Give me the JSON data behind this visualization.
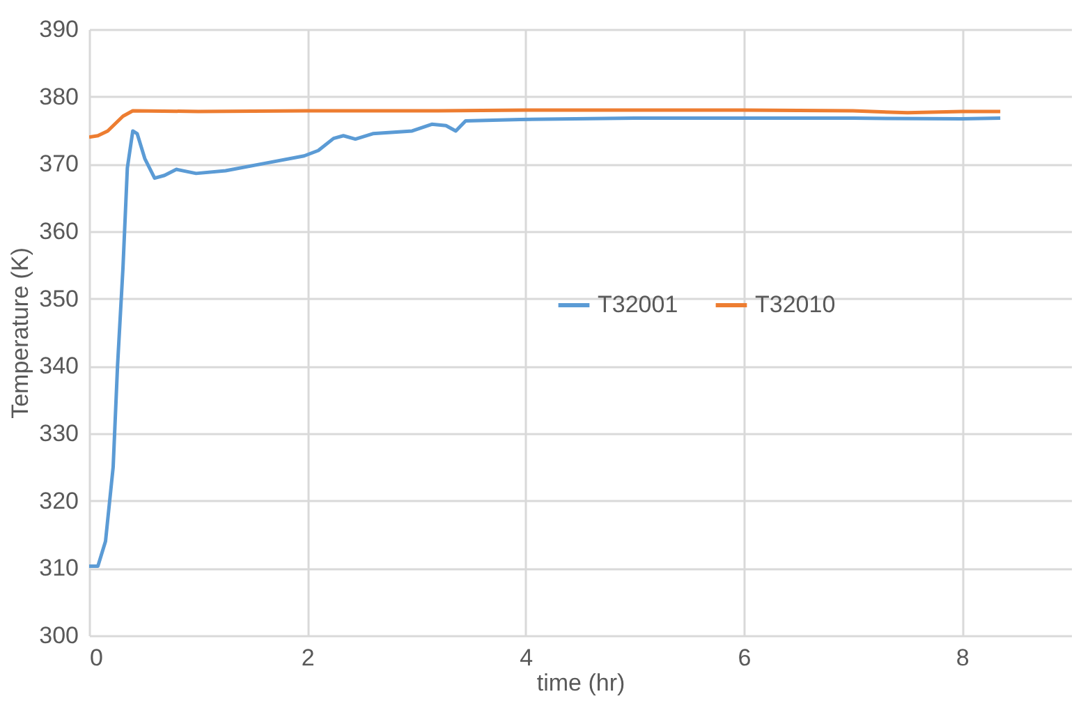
{
  "chart_data": {
    "type": "line",
    "xlabel": "time (hr)",
    "ylabel": "Temperature (K)",
    "xlim": [
      0,
      9
    ],
    "xticks": [
      0,
      2,
      4,
      6,
      8
    ],
    "ylim": [
      300,
      390
    ],
    "yticks": [
      300,
      310,
      320,
      330,
      340,
      350,
      360,
      370,
      380,
      390
    ],
    "grid": true,
    "legend": "right",
    "marker": "none",
    "line_style": "solid",
    "series": [
      {
        "name": "T32001",
        "color": "#5b9bd5",
        "x": [
          0,
          0.08,
          0.15,
          0.22,
          0.26,
          0.31,
          0.35,
          0.4,
          0.44,
          0.51,
          0.6,
          0.69,
          0.8,
          0.98,
          1.25,
          1.61,
          1.97,
          2.1,
          2.24,
          2.33,
          2.44,
          2.6,
          2.96,
          3.14,
          3.27,
          3.36,
          3.45,
          3.95,
          5,
          6,
          7,
          8,
          8.35
        ],
        "values": [
          310.3,
          310.3,
          314,
          325,
          340,
          354.6,
          369.4,
          374.9,
          374.5,
          370.8,
          367.9,
          368.3,
          369.2,
          368.6,
          369,
          370.1,
          371.2,
          372,
          373.8,
          374.2,
          373.7,
          374.5,
          374.9,
          375.9,
          375.7,
          374.9,
          376.4,
          376.6,
          376.8,
          376.8,
          376.8,
          376.7,
          376.8
        ]
      },
      {
        "name": "T32010",
        "color": "#ed7d31",
        "x": [
          0,
          0.08,
          0.17,
          0.31,
          0.4,
          1,
          2,
          3.2,
          4,
          5,
          6,
          7,
          7.5,
          8,
          8.35
        ],
        "values": [
          374,
          374.2,
          374.9,
          377.1,
          377.9,
          377.8,
          377.9,
          377.9,
          378,
          378,
          378,
          377.9,
          377.6,
          377.8,
          377.8
        ]
      }
    ]
  }
}
